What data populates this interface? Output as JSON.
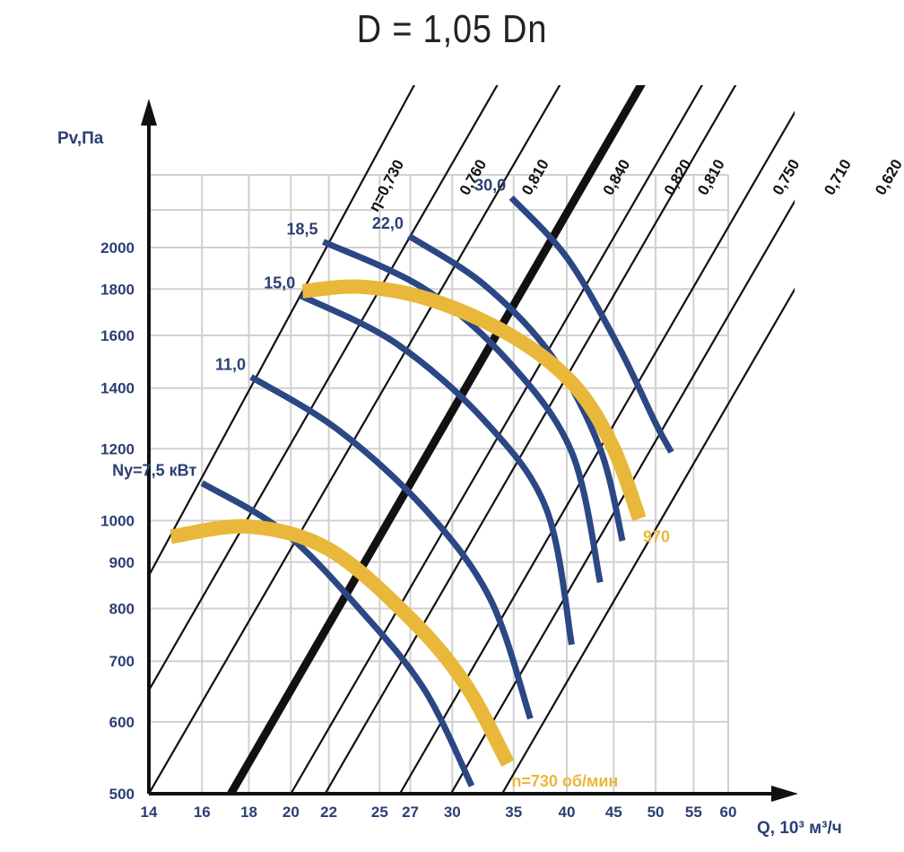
{
  "chart_data": {
    "type": "line",
    "title": "D = 1,05 Dn",
    "ylabel": "Pv,Па",
    "xlabel": "Q, 10³ м³/ч",
    "x_scale": "log",
    "y_scale": "log",
    "xlim": [
      14,
      60
    ],
    "ylim": [
      500,
      2400
    ],
    "x_ticks": [
      14,
      16,
      18,
      20,
      22,
      25,
      27,
      30,
      35,
      40,
      45,
      50,
      55,
      60
    ],
    "y_ticks": [
      500,
      600,
      700,
      800,
      900,
      1000,
      1200,
      1400,
      1600,
      1800,
      2000
    ],
    "grid": true,
    "efficiency_lines": [
      {
        "label": "η=0,730",
        "points": [
          [
            14,
            870
          ],
          [
            31.9,
            4050
          ]
        ],
        "bold": false
      },
      {
        "label": "0,760",
        "points": [
          [
            14,
            650
          ],
          [
            39.7,
            4050
          ]
        ],
        "bold": false
      },
      {
        "label": "0,810",
        "points": [
          [
            14,
            500
          ],
          [
            46.5,
            4050
          ]
        ],
        "bold": false
      },
      {
        "label": "0,840",
        "points": [
          [
            17.2,
            500
          ],
          [
            57.0,
            4050
          ]
        ],
        "bold": true
      },
      {
        "label": "0,820",
        "points": [
          [
            20.0,
            500
          ],
          [
            66.5,
            4050
          ]
        ],
        "bold": false
      },
      {
        "label": "0,810",
        "points": [
          [
            21.8,
            500
          ],
          [
            72.3,
            4050
          ]
        ],
        "bold": false
      },
      {
        "label": "0,750",
        "points": [
          [
            26.3,
            500
          ],
          [
            87.3,
            4050
          ]
        ],
        "bold": false
      },
      {
        "label": "0,710",
        "points": [
          [
            29.9,
            500
          ],
          [
            99.4,
            4050
          ]
        ],
        "bold": false
      },
      {
        "label": "0,620",
        "points": [
          [
            34.0,
            500
          ],
          [
            113.0,
            4050
          ]
        ],
        "bold": false
      }
    ],
    "series": [
      {
        "name": "Ny=7,5 кВт",
        "kind": "power",
        "points": [
          [
            16.0,
            1100
          ],
          [
            19.7,
            970
          ],
          [
            24.0,
            790
          ],
          [
            28.0,
            650
          ],
          [
            31.5,
            510
          ]
        ]
      },
      {
        "name": "11,0",
        "kind": "power",
        "points": [
          [
            18.1,
            1440
          ],
          [
            22.5,
            1260
          ],
          [
            28.0,
            1030
          ],
          [
            33.0,
            820
          ],
          [
            36.5,
            605
          ]
        ]
      },
      {
        "name": "15,0",
        "kind": "power",
        "points": [
          [
            20.5,
            1770
          ],
          [
            26.0,
            1570
          ],
          [
            32.5,
            1290
          ],
          [
            38.0,
            1030
          ],
          [
            40.5,
            730
          ]
        ]
      },
      {
        "name": "18,5",
        "kind": "power",
        "points": [
          [
            21.7,
            2030
          ],
          [
            28.0,
            1800
          ],
          [
            34.5,
            1500
          ],
          [
            40.5,
            1190
          ],
          [
            43.5,
            855
          ]
        ]
      },
      {
        "name": "22,0",
        "kind": "power",
        "points": [
          [
            26.9,
            2060
          ],
          [
            32.5,
            1820
          ],
          [
            38.5,
            1520
          ],
          [
            43.5,
            1200
          ],
          [
            46.0,
            950
          ]
        ]
      },
      {
        "name": "30,0",
        "kind": "power",
        "points": [
          [
            34.8,
            2270
          ],
          [
            40.0,
            1950
          ],
          [
            45.5,
            1560
          ],
          [
            50.0,
            1280
          ],
          [
            52.0,
            1190
          ]
        ]
      },
      {
        "name": "n=730 об/мин",
        "kind": "speed",
        "points": [
          [
            14.8,
            960
          ],
          [
            18.0,
            985
          ],
          [
            22.0,
            930
          ],
          [
            27.0,
            780
          ],
          [
            31.0,
            660
          ],
          [
            34.5,
            540
          ]
        ]
      },
      {
        "name": "970",
        "kind": "speed",
        "points": [
          [
            20.6,
            1790
          ],
          [
            24.0,
            1810
          ],
          [
            29.0,
            1740
          ],
          [
            35.5,
            1580
          ],
          [
            41.0,
            1400
          ],
          [
            45.0,
            1200
          ],
          [
            48.0,
            1005
          ]
        ]
      }
    ]
  }
}
